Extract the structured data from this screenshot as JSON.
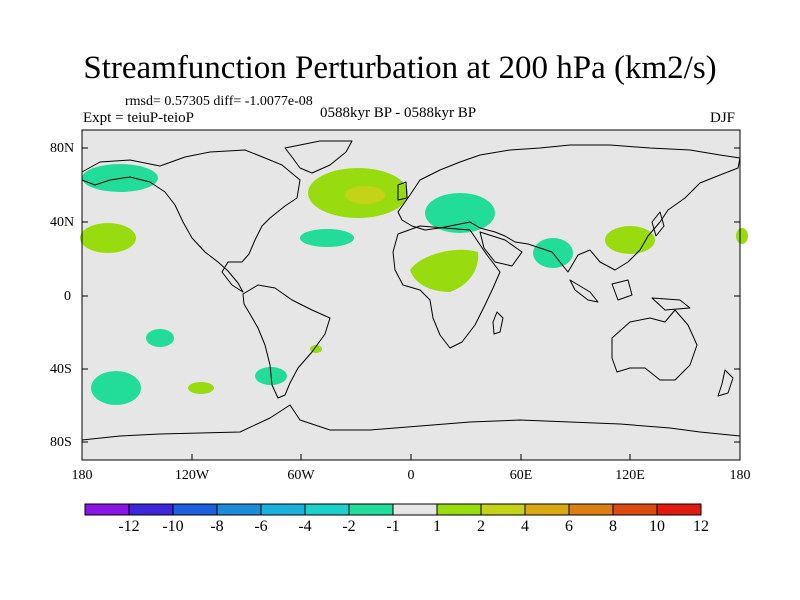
{
  "title": "Streamfunction Perturbation at 200 hPa (km2/s)",
  "stats": "rmsd= 0.57305 diff= -1.0077e-08",
  "experiment": "Expt = teiuP-teioP",
  "period": "0588kyr BP - 0588kyr BP",
  "season": "DJF",
  "y_axis": {
    "ticks": [
      "80N",
      "40N",
      "0",
      "40S",
      "80S"
    ]
  },
  "x_axis": {
    "ticks": [
      "180",
      "120W",
      "60W",
      "0",
      "60E",
      "120E",
      "180"
    ]
  },
  "colorbar": {
    "labels": [
      "-12",
      "-10",
      "-8",
      "-6",
      "-4",
      "-2",
      "-1",
      "1",
      "2",
      "4",
      "6",
      "8",
      "10",
      "12"
    ],
    "colors": [
      "#8a16e6",
      "#3d26d8",
      "#1e5fe0",
      "#1a8cd8",
      "#18b0dc",
      "#1ad0c8",
      "#22dd9a",
      "#e6e6e6",
      "#98dc10",
      "#c4d218",
      "#d8aa10",
      "#dc7e10",
      "#dc4a10",
      "#e01a10"
    ]
  },
  "map_background": "#e6e6e6"
}
